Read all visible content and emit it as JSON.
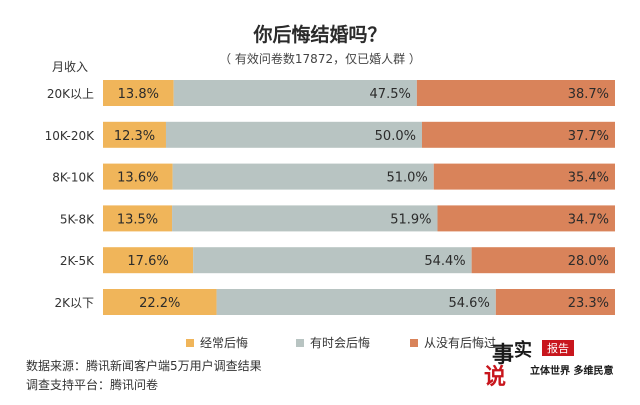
{
  "chart_data": {
    "type": "bar",
    "stacked": true,
    "orientation": "horizontal",
    "normalized": true,
    "title": "你后悔结婚吗？",
    "subtitle": "（ 有效问卷数17872，仅已婚人群 ）",
    "ylabel": "月收入",
    "categories": [
      "20K以上",
      "10K-20K",
      "8K-10K",
      "5K-8K",
      "2K-5K",
      "2K以下"
    ],
    "series": [
      {
        "name": "经常后悔",
        "color": "#f0b55a",
        "values": [
          13.8,
          12.3,
          13.6,
          13.5,
          17.6,
          22.2
        ],
        "labels": [
          "13.8%",
          "12.3%",
          "13.6%",
          "13.5%",
          "17.6%",
          "22.2%"
        ]
      },
      {
        "name": "有时会后悔",
        "color": "#b8c4c2",
        "values": [
          47.5,
          50.0,
          51.0,
          51.9,
          54.4,
          54.6
        ],
        "labels": [
          "47.5%",
          "50.0%",
          "51.0%",
          "51.9%",
          "54.4%",
          "54.6%"
        ]
      },
      {
        "name": "从没有后悔过",
        "color": "#d9835a",
        "values": [
          38.7,
          37.7,
          35.4,
          34.7,
          28.0,
          23.3
        ],
        "labels": [
          "38.7%",
          "37.7%",
          "35.4%",
          "34.7%",
          "28.0%",
          "23.3%"
        ]
      }
    ],
    "legend_position": "bottom",
    "grid": false
  },
  "source": {
    "line1": "数据来源：腾讯新闻客户端5万用户调查结果",
    "line2": "调查支持平台：腾讯问卷"
  },
  "logo": {
    "text_main_1": "事",
    "text_main_2": "实",
    "text_main_3": "说",
    "badge": "报告",
    "slogan": "立体世界 多维民意",
    "colors": {
      "red": "#c8161d",
      "dark": "#1a1a1a"
    }
  }
}
